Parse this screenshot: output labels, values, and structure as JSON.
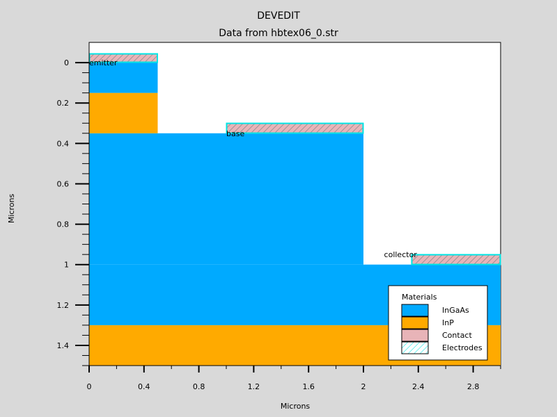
{
  "title": "DEVEDIT",
  "subtitle": "Data from hbtex06_0.str",
  "colors": {
    "background": "#d9d9d9",
    "plot_bg": "#ffffff",
    "InGaAs": "#00aaff",
    "InP": "#ffaa00",
    "Contact": "#e8b4b8",
    "electrode_outline": "#00e5e5",
    "hatch": "#888888"
  },
  "chart_data": {
    "type": "structure",
    "title": "DEVEDIT",
    "subtitle": "Data from hbtex06_0.str",
    "xlabel": "Microns",
    "ylabel": "Microns",
    "xlim": [
      0,
      3.0
    ],
    "ylim": [
      -0.1,
      1.5
    ],
    "y_inverted": true,
    "x_ticks": [
      0,
      0.4,
      0.8,
      1.2,
      1.6,
      2,
      2.4,
      2.8
    ],
    "x_tick_labels": [
      "0",
      "0.4",
      "0.8",
      "1.2",
      "1.6",
      "2",
      "2.4",
      "2.8"
    ],
    "y_ticks": [
      0,
      0.2,
      0.4,
      0.6,
      0.8,
      1.0,
      1.2,
      1.4
    ],
    "y_tick_labels": [
      "0",
      "0.2",
      "0.4",
      "0.6",
      "0.8",
      "1",
      "1.2",
      "1.4"
    ],
    "y_minor_step": 0.05,
    "x_minor_step": 0.2,
    "regions": [
      {
        "material": "InP",
        "x": [
          0,
          3.0
        ],
        "y": [
          1.3,
          1.5
        ]
      },
      {
        "material": "InGaAs",
        "x": [
          0,
          3.0
        ],
        "y": [
          1.0,
          1.3
        ]
      },
      {
        "material": "InGaAs",
        "x": [
          0,
          2.0
        ],
        "y": [
          0.35,
          1.0
        ]
      },
      {
        "material": "InP",
        "x": [
          0,
          0.5
        ],
        "y": [
          0.15,
          0.35
        ]
      },
      {
        "material": "InGaAs",
        "x": [
          0,
          0.5
        ],
        "y": [
          0.0,
          0.15
        ]
      }
    ],
    "electrodes": [
      {
        "name": "emitter",
        "x": [
          0,
          0.5
        ],
        "y": [
          -0.045,
          0.0
        ],
        "label_x": 0.0,
        "label_y": 0.0
      },
      {
        "name": "base",
        "x": [
          1.0,
          2.0
        ],
        "y": [
          0.3,
          0.35
        ],
        "label_x": 1.0,
        "label_y": 0.35
      },
      {
        "name": "collector",
        "x": [
          2.35,
          3.0
        ],
        "y": [
          0.95,
          1.0
        ],
        "label_x": 2.15,
        "label_y": 0.95
      }
    ],
    "legend": {
      "title": "Materials",
      "position": "bottom-right",
      "entries": [
        {
          "label": "InGaAs",
          "style": "InGaAs"
        },
        {
          "label": "InP",
          "style": "InP"
        },
        {
          "label": "Contact",
          "style": "Contact"
        },
        {
          "label": "Electrodes",
          "style": "Electrodes"
        }
      ]
    }
  }
}
